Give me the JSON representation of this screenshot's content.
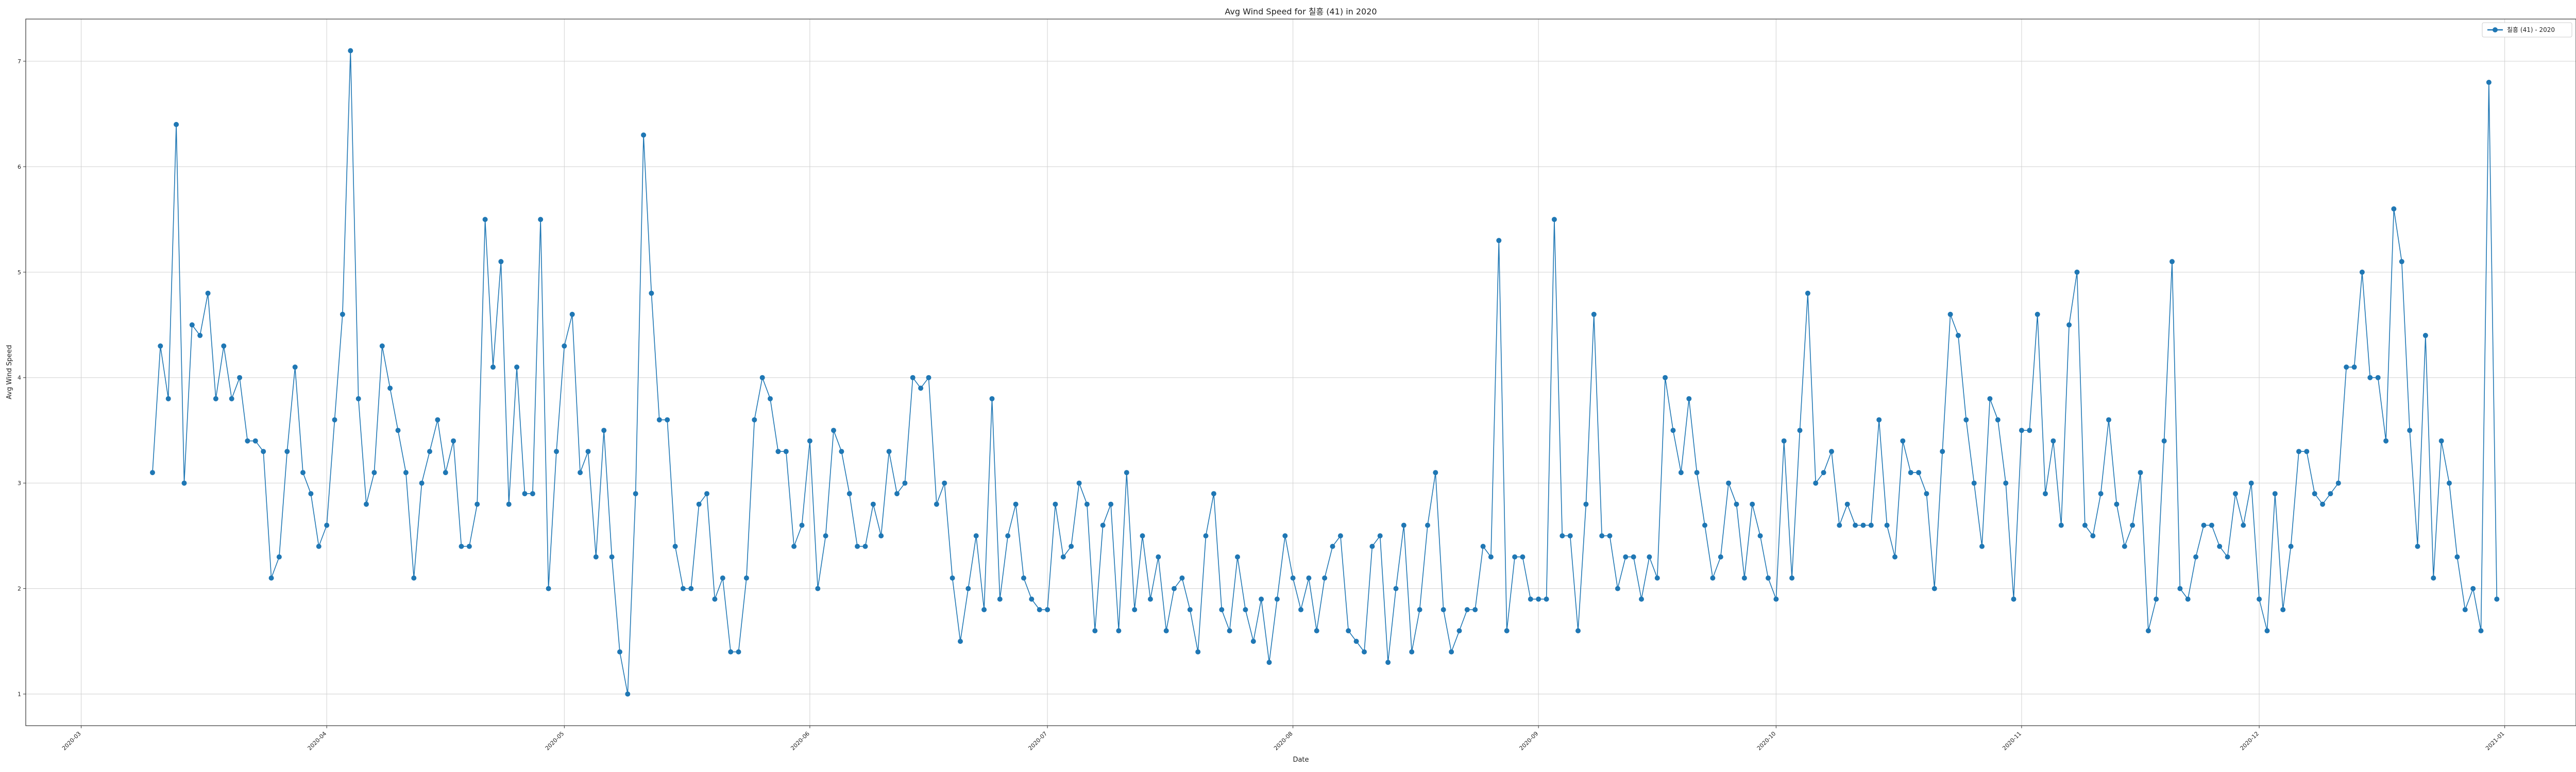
{
  "chart_data": {
    "type": "line",
    "title": "Avg Wind Speed for 칠흥 (41) in 2020",
    "xlabel": "Date",
    "ylabel": "Avg Wind Speed",
    "xlim": [
      "2020-02-23",
      "2021-01-10"
    ],
    "ylim": [
      0.7,
      7.4
    ],
    "x_ticks": [
      "2020-03",
      "2020-04",
      "2020-05",
      "2020-06",
      "2020-07",
      "2020-08",
      "2020-09",
      "2020-10",
      "2020-11",
      "2020-12",
      "2021-01"
    ],
    "y_ticks": [
      1,
      2,
      3,
      4,
      5,
      6,
      7
    ],
    "grid": true,
    "legend": "top-right",
    "color": "#1f77b4",
    "series": [
      {
        "name": "칠흥 (41) - 2020",
        "start_date": "2020-03-10",
        "values": [
          3.1,
          4.3,
          3.8,
          6.4,
          3.0,
          4.5,
          4.4,
          4.8,
          3.8,
          4.3,
          3.8,
          4.0,
          3.4,
          3.4,
          3.3,
          2.1,
          2.3,
          3.3,
          4.1,
          3.1,
          2.9,
          2.4,
          2.6,
          3.6,
          4.6,
          7.1,
          3.8,
          2.8,
          3.1,
          4.3,
          3.9,
          3.5,
          3.1,
          2.1,
          3.0,
          3.3,
          3.6,
          3.1,
          3.4,
          2.4,
          2.4,
          2.8,
          5.5,
          4.1,
          5.1,
          2.8,
          4.1,
          2.9,
          2.9,
          5.5,
          2.0,
          3.3,
          4.3,
          4.6,
          3.1,
          3.3,
          2.3,
          3.5,
          2.3,
          1.4,
          1.0,
          2.9,
          6.3,
          4.8,
          3.6,
          3.6,
          2.4,
          2.0,
          2.0,
          2.8,
          2.9,
          1.9,
          2.1,
          1.4,
          1.4,
          2.1,
          3.6,
          4.0,
          3.8,
          3.3,
          3.3,
          2.4,
          2.6,
          3.4,
          2.0,
          2.5,
          3.5,
          3.3,
          2.9,
          2.4,
          2.4,
          2.8,
          2.5,
          3.3,
          2.9,
          3.0,
          4.0,
          3.9,
          4.0,
          2.8,
          3.0,
          2.1,
          1.5,
          2.0,
          2.5,
          1.8,
          3.8,
          1.9,
          2.5,
          2.8,
          2.1,
          1.9,
          1.8,
          1.8,
          2.8,
          2.3,
          2.4,
          3.0,
          2.8,
          1.6,
          2.6,
          2.8,
          1.6,
          3.1,
          1.8,
          2.5,
          1.9,
          2.3,
          1.6,
          2.0,
          2.1,
          1.8,
          1.4,
          2.5,
          2.9,
          1.8,
          1.6,
          2.3,
          1.8,
          1.5,
          1.9,
          1.3,
          1.9,
          2.5,
          2.1,
          1.8,
          2.1,
          1.6,
          2.1,
          2.4,
          2.5,
          1.6,
          1.5,
          1.4,
          2.4,
          2.5,
          1.3,
          2.0,
          2.6,
          1.4,
          1.8,
          2.6,
          3.1,
          1.8,
          1.4,
          1.6,
          1.8,
          1.8,
          2.4,
          2.3,
          5.3,
          1.6,
          2.3,
          2.3,
          1.9,
          1.9,
          1.9,
          5.5,
          2.5,
          2.5,
          1.6,
          2.8,
          4.6,
          2.5,
          2.5,
          2.0,
          2.3,
          2.3,
          1.9,
          2.3,
          2.1,
          4.0,
          3.5,
          3.1,
          3.8,
          3.1,
          2.6,
          2.1,
          2.3,
          3.0,
          2.8,
          2.1,
          2.8,
          2.5,
          2.1,
          1.9,
          3.4,
          2.1,
          3.5,
          4.8,
          3.0,
          3.1,
          3.3,
          2.6,
          2.8,
          2.6,
          2.6,
          2.6,
          3.6,
          2.6,
          2.3,
          3.4,
          3.1,
          3.1,
          2.9,
          2.0,
          3.3,
          4.6,
          4.4,
          3.6,
          3.0,
          2.4,
          3.8,
          3.6,
          3.0,
          1.9,
          3.5,
          3.5,
          4.6,
          2.9,
          3.4,
          2.6,
          4.5,
          5.0,
          2.6,
          2.5,
          2.9,
          3.6,
          2.8,
          2.4,
          2.6,
          3.1,
          1.6,
          1.9,
          3.4,
          5.1,
          2.0,
          1.9,
          2.3,
          2.6,
          2.6,
          2.4,
          2.3,
          2.9,
          2.6,
          3.0,
          1.9,
          1.6,
          2.9,
          1.8,
          2.4,
          3.3,
          3.3,
          2.9,
          2.8,
          2.9,
          3.0,
          4.1,
          4.1,
          5.0,
          4.0,
          4.0,
          3.4,
          5.6,
          5.1,
          3.5,
          2.4,
          4.4,
          2.1,
          3.4,
          3.0,
          2.3,
          1.8,
          2.0,
          1.6,
          6.8,
          1.9
        ]
      }
    ]
  }
}
